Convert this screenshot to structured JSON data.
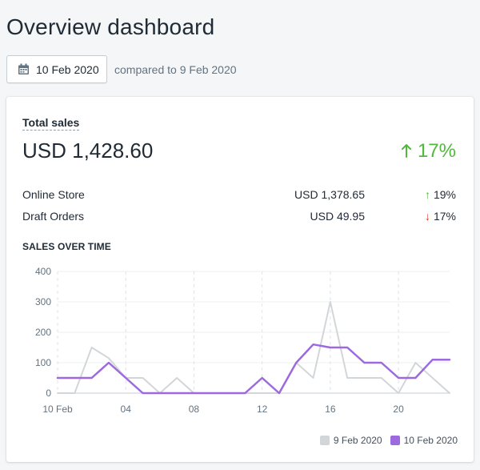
{
  "page": {
    "title": "Overview dashboard"
  },
  "date_picker": {
    "icon": "calendar-icon",
    "label": "10 Feb 2020",
    "comparison": "compared to 9 Feb 2020"
  },
  "total_sales": {
    "label": "Total sales",
    "value": "USD 1,428.60",
    "change": "17%",
    "change_direction": "up",
    "change_color": "#50b83c"
  },
  "breakdown": [
    {
      "name": "Online Store",
      "amount": "USD 1,378.65",
      "change": "19%",
      "direction": "up"
    },
    {
      "name": "Draft Orders",
      "amount": "USD 49.95",
      "change": "17%",
      "direction": "down"
    }
  ],
  "chart_section": {
    "title": "SALES OVER TIME"
  },
  "chart_data": {
    "type": "line",
    "x": [
      0,
      1,
      2,
      3,
      4,
      5,
      6,
      7,
      8,
      9,
      10,
      11,
      12,
      13,
      14,
      15,
      16,
      17,
      18,
      19,
      20,
      21,
      22,
      23
    ],
    "x_tick_labels": [
      {
        "x": 0,
        "label": "10 Feb"
      },
      {
        "x": 4,
        "label": "04"
      },
      {
        "x": 8,
        "label": "08"
      },
      {
        "x": 12,
        "label": "12"
      },
      {
        "x": 16,
        "label": "16"
      },
      {
        "x": 20,
        "label": "20"
      }
    ],
    "y_ticks": [
      0,
      100,
      200,
      300,
      400
    ],
    "ylim": [
      0,
      400
    ],
    "xlim": [
      0,
      23
    ],
    "grid": true,
    "legend_position": "bottom-right",
    "series": [
      {
        "name": "9 Feb 2020",
        "color": "#d3d6d9",
        "values": [
          0,
          0,
          150,
          115,
          50,
          50,
          0,
          50,
          0,
          0,
          0,
          0,
          0,
          0,
          100,
          50,
          300,
          50,
          50,
          50,
          0,
          100,
          50,
          0
        ]
      },
      {
        "name": "10 Feb 2020",
        "color": "#9c6ade",
        "values": [
          50,
          50,
          50,
          100,
          50,
          0,
          0,
          0,
          0,
          0,
          0,
          0,
          50,
          0,
          100,
          160,
          150,
          150,
          100,
          100,
          50,
          50,
          110,
          110
        ]
      }
    ]
  }
}
